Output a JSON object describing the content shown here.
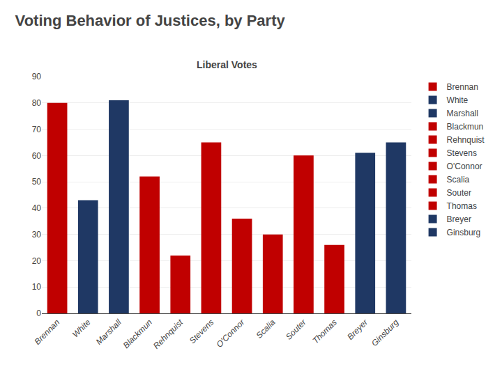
{
  "chart_data": {
    "type": "bar",
    "title": "Voting Behavior of Justices, by Party",
    "subtitle": "Liberal Votes",
    "categories": [
      "Brennan",
      "White",
      "Marshall",
      "Blackmun",
      "Rehnquist",
      "Stevens",
      "O'Connor",
      "Scalia",
      "Souter",
      "Thomas",
      "Breyer",
      "Ginsburg"
    ],
    "values": [
      80,
      43,
      81,
      52,
      22,
      65,
      36,
      30,
      60,
      26,
      61,
      65
    ],
    "colors": [
      "#C00000",
      "#1F3864",
      "#1F3864",
      "#C00000",
      "#C00000",
      "#C00000",
      "#C00000",
      "#C00000",
      "#C00000",
      "#C00000",
      "#1F3864",
      "#1F3864"
    ],
    "legend_entries": [
      {
        "label": "Brennan",
        "color": "#C00000"
      },
      {
        "label": "White",
        "color": "#1F3864"
      },
      {
        "label": "Marshall",
        "color": "#1F3864"
      },
      {
        "label": "Blackmun",
        "color": "#C00000"
      },
      {
        "label": "Rehnquist",
        "color": "#C00000"
      },
      {
        "label": "Stevens",
        "color": "#C00000"
      },
      {
        "label": "O'Connor",
        "color": "#C00000"
      },
      {
        "label": "Scalia",
        "color": "#C00000"
      },
      {
        "label": "Souter",
        "color": "#C00000"
      },
      {
        "label": "Thomas",
        "color": "#C00000"
      },
      {
        "label": "Breyer",
        "color": "#1F3864"
      },
      {
        "label": "Ginsburg",
        "color": "#1F3864"
      }
    ],
    "legend": "right",
    "ylim": [
      0,
      90
    ],
    "yticks": [
      0,
      10,
      20,
      30,
      40,
      50,
      60,
      70,
      80,
      90
    ],
    "grid": true
  }
}
